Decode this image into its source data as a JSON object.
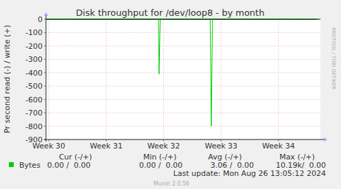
{
  "chart_data": {
    "type": "line",
    "title": "Disk throughput for /dev/loop8 - by month",
    "y_label": "Pr second read (-) / write (+)",
    "x": [
      29.95,
      31.91,
      31.92,
      31.94,
      32.81,
      32.83,
      32.85,
      34.67
    ],
    "series": [
      {
        "name": "Bytes",
        "color": "#00cc00",
        "values": [
          0,
          0,
          -410,
          0,
          0,
          -800,
          0,
          0
        ]
      },
      {
        "color": "#00cc00",
        "values": [
          0,
          0,
          0,
          0,
          0,
          0,
          0,
          0
        ]
      }
    ],
    "xlim": [
      29.95,
      34.73
    ],
    "xticks": [
      {
        "value": 30,
        "label": "Week 30"
      },
      {
        "value": 31,
        "label": "Week 31"
      },
      {
        "value": 32,
        "label": "Week 32"
      },
      {
        "value": 33,
        "label": "Week 33"
      },
      {
        "value": 34,
        "label": "Week 34"
      }
    ],
    "ylim": [
      -900,
      0
    ],
    "yticks": [
      -900,
      -800,
      -700,
      -600,
      -500,
      -400,
      -300,
      -200,
      -100,
      0
    ],
    "grid": true,
    "summary": {
      "columns": [
        "Cur (-/+)",
        "Min (-/+)",
        "Avg (-/+)",
        "Max (-/+)"
      ],
      "cells": [
        "0.00 /  0.00",
        "0.00 /  0.00",
        "3.06 /  0.00",
        "10.19k/  0.00"
      ]
    },
    "footer": "Last update: Mon Aug 26 13:05:12 2024",
    "credit": "Munin 2.0.56",
    "watermark": "RRDTOOL / TOBI OETIKER"
  }
}
